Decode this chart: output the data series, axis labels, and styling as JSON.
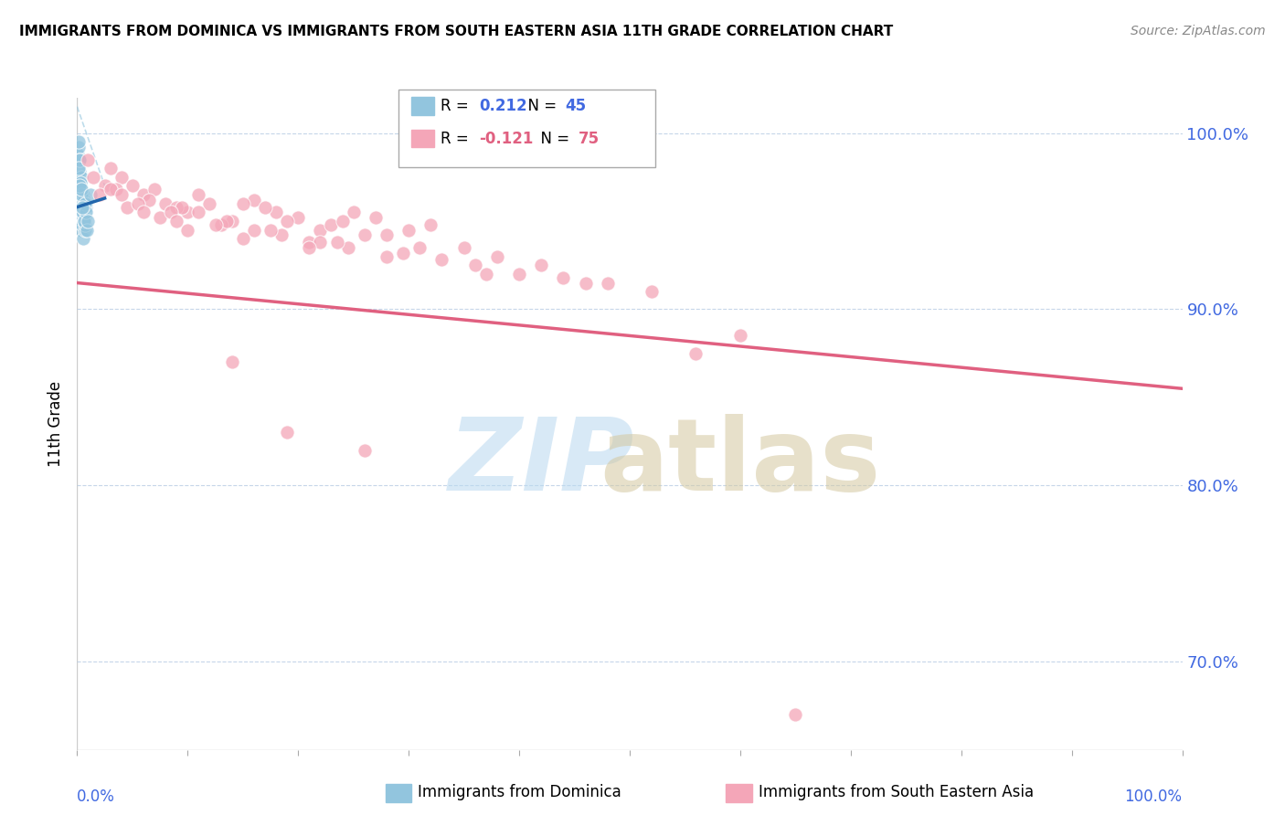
{
  "title": "IMMIGRANTS FROM DOMINICA VS IMMIGRANTS FROM SOUTH EASTERN ASIA 11TH GRADE CORRELATION CHART",
  "source": "Source: ZipAtlas.com",
  "ylabel": "11th Grade",
  "legend_blue_r_val": "0.212",
  "legend_blue_n_val": "45",
  "legend_pink_r_val": "-0.121",
  "legend_pink_n_val": "75",
  "right_yticks": [
    70.0,
    80.0,
    90.0,
    100.0
  ],
  "color_blue": "#92c5de",
  "color_pink": "#f4a6b8",
  "color_trendline_blue": "#2166ac",
  "color_trendline_pink": "#e06080",
  "color_axis_labels": "#4169E1",
  "background_color": "#ffffff",
  "blue_scatter_x": [
    0.05,
    0.08,
    0.12,
    0.15,
    0.18,
    0.2,
    0.22,
    0.25,
    0.28,
    0.3,
    0.32,
    0.35,
    0.38,
    0.4,
    0.42,
    0.45,
    0.48,
    0.5,
    0.52,
    0.55,
    0.58,
    0.6,
    0.62,
    0.65,
    0.68,
    0.7,
    0.72,
    0.75,
    0.78,
    0.8,
    0.1,
    0.2,
    0.3,
    0.4,
    0.5,
    0.6,
    0.7,
    0.8,
    0.9,
    1.0,
    0.15,
    0.25,
    0.35,
    0.45,
    1.2
  ],
  "blue_scatter_y": [
    97.5,
    98.8,
    96.0,
    99.2,
    97.8,
    96.5,
    98.5,
    95.5,
    97.0,
    96.8,
    95.0,
    97.5,
    96.2,
    95.8,
    94.5,
    96.0,
    95.5,
    94.8,
    96.5,
    95.2,
    94.0,
    95.8,
    95.0,
    96.2,
    94.5,
    95.5,
    94.8,
    95.2,
    95.8,
    96.0,
    99.5,
    98.5,
    97.2,
    96.5,
    95.5,
    95.0,
    96.0,
    95.5,
    94.5,
    95.0,
    98.0,
    97.0,
    96.8,
    95.8,
    96.5
  ],
  "pink_scatter_x": [
    1.0,
    2.5,
    4.0,
    6.0,
    8.0,
    3.0,
    5.0,
    7.0,
    10.0,
    12.0,
    9.0,
    11.0,
    14.0,
    16.0,
    18.0,
    13.0,
    15.0,
    20.0,
    22.0,
    25.0,
    17.0,
    19.0,
    23.0,
    27.0,
    30.0,
    21.0,
    24.0,
    28.0,
    32.0,
    35.0,
    2.0,
    4.5,
    7.5,
    11.0,
    16.0,
    22.0,
    26.0,
    31.0,
    38.0,
    42.0,
    1.5,
    3.5,
    6.5,
    9.5,
    13.5,
    18.5,
    24.5,
    33.0,
    40.0,
    48.0,
    5.5,
    8.5,
    12.5,
    17.5,
    23.5,
    29.5,
    36.0,
    44.0,
    52.0,
    60.0,
    3.0,
    6.0,
    10.0,
    15.0,
    21.0,
    28.0,
    37.0,
    46.0,
    26.0,
    56.0,
    4.0,
    9.0,
    14.0,
    19.0,
    65.0
  ],
  "pink_scatter_y": [
    98.5,
    97.0,
    97.5,
    96.5,
    96.0,
    98.0,
    97.0,
    96.8,
    95.5,
    96.0,
    95.8,
    96.5,
    95.0,
    96.2,
    95.5,
    94.8,
    96.0,
    95.2,
    94.5,
    95.5,
    95.8,
    95.0,
    94.8,
    95.2,
    94.5,
    93.8,
    95.0,
    94.2,
    94.8,
    93.5,
    96.5,
    95.8,
    95.2,
    95.5,
    94.5,
    93.8,
    94.2,
    93.5,
    93.0,
    92.5,
    97.5,
    96.8,
    96.2,
    95.8,
    95.0,
    94.2,
    93.5,
    92.8,
    92.0,
    91.5,
    96.0,
    95.5,
    94.8,
    94.5,
    93.8,
    93.2,
    92.5,
    91.8,
    91.0,
    88.5,
    96.8,
    95.5,
    94.5,
    94.0,
    93.5,
    93.0,
    92.0,
    91.5,
    82.0,
    87.5,
    96.5,
    95.0,
    87.0,
    83.0,
    67.0
  ],
  "xlim": [
    0,
    100
  ],
  "ylim": [
    65,
    102
  ],
  "dashed_line_y_start": 101.5,
  "dashed_line_y_end": 97.0,
  "pink_trendline_y_at_0": 91.5,
  "pink_trendline_y_at_100": 85.5,
  "blue_trendline_y_at_0": 95.8,
  "blue_trendline_y_at_2": 96.2
}
